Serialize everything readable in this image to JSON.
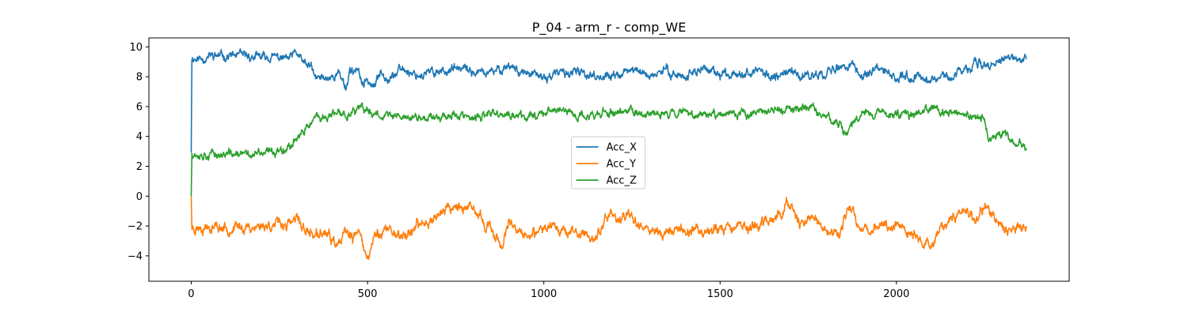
{
  "chart_data": {
    "type": "line",
    "title": "P_04 - arm_r - comp_WE",
    "xlabel": "",
    "ylabel": "",
    "xlim": [
      -120,
      2490
    ],
    "ylim": [
      -5.7,
      10.6
    ],
    "xticks": [
      0,
      500,
      1000,
      1500,
      2000
    ],
    "xtick_labels": [
      "0",
      "500",
      "1000",
      "1500",
      "2000"
    ],
    "yticks": [
      -4,
      -2,
      0,
      2,
      4,
      6,
      8,
      10
    ],
    "ytick_labels": [
      "−4",
      "−2",
      "0",
      "2",
      "4",
      "6",
      "8",
      "10"
    ],
    "grid": false,
    "legend_position": "center",
    "n_points": 2370,
    "series": [
      {
        "name": "Acc_X",
        "color": "#1f77b4",
        "keypoints": [
          [
            0,
            2.9
          ],
          [
            2,
            9.3
          ],
          [
            20,
            9.2
          ],
          [
            60,
            9.4
          ],
          [
            120,
            9.4
          ],
          [
            180,
            9.3
          ],
          [
            240,
            9.3
          ],
          [
            280,
            9.2
          ],
          [
            300,
            9.6
          ],
          [
            320,
            8.8
          ],
          [
            340,
            8.7
          ],
          [
            350,
            7.9
          ],
          [
            380,
            7.9
          ],
          [
            420,
            8.2
          ],
          [
            440,
            7.3
          ],
          [
            450,
            8.5
          ],
          [
            470,
            8.4
          ],
          [
            490,
            7.4
          ],
          [
            500,
            7.8
          ],
          [
            520,
            7.3
          ],
          [
            540,
            8.5
          ],
          [
            560,
            7.9
          ],
          [
            600,
            8.5
          ],
          [
            650,
            8.1
          ],
          [
            700,
            8.4
          ],
          [
            760,
            8.5
          ],
          [
            800,
            8.3
          ],
          [
            850,
            8.2
          ],
          [
            900,
            8.8
          ],
          [
            950,
            8.2
          ],
          [
            1000,
            7.9
          ],
          [
            1050,
            8.3
          ],
          [
            1100,
            8.2
          ],
          [
            1150,
            8.1
          ],
          [
            1200,
            8.0
          ],
          [
            1250,
            8.5
          ],
          [
            1300,
            8.1
          ],
          [
            1350,
            8.4
          ],
          [
            1400,
            8.0
          ],
          [
            1450,
            8.6
          ],
          [
            1500,
            8.0
          ],
          [
            1550,
            8.4
          ],
          [
            1600,
            8.3
          ],
          [
            1650,
            8.1
          ],
          [
            1700,
            8.3
          ],
          [
            1750,
            8.0
          ],
          [
            1800,
            8.4
          ],
          [
            1850,
            8.6
          ],
          [
            1880,
            8.8
          ],
          [
            1900,
            8.0
          ],
          [
            1950,
            8.4
          ],
          [
            2000,
            8.0
          ],
          [
            2050,
            8.0
          ],
          [
            2100,
            7.9
          ],
          [
            2150,
            8.1
          ],
          [
            2180,
            8.3
          ],
          [
            2210,
            8.3
          ],
          [
            2220,
            9.2
          ],
          [
            2250,
            8.8
          ],
          [
            2280,
            8.9
          ],
          [
            2320,
            9.2
          ],
          [
            2360,
            9.1
          ],
          [
            2368,
            9.2
          ]
        ],
        "noise": 0.26,
        "seed": 11
      },
      {
        "name": "Acc_Y",
        "color": "#ff7f0e",
        "keypoints": [
          [
            0,
            0.0
          ],
          [
            2,
            -2.1
          ],
          [
            40,
            -2.0
          ],
          [
            100,
            -2.1
          ],
          [
            160,
            -2.1
          ],
          [
            220,
            -1.9
          ],
          [
            280,
            -1.9
          ],
          [
            300,
            -1.6
          ],
          [
            330,
            -2.4
          ],
          [
            360,
            -2.7
          ],
          [
            380,
            -2.4
          ],
          [
            400,
            -3.0
          ],
          [
            420,
            -3.4
          ],
          [
            440,
            -2.4
          ],
          [
            460,
            -3.0
          ],
          [
            480,
            -2.2
          ],
          [
            500,
            -4.5
          ],
          [
            520,
            -2.6
          ],
          [
            560,
            -2.2
          ],
          [
            600,
            -2.7
          ],
          [
            640,
            -2.1
          ],
          [
            680,
            -1.5
          ],
          [
            720,
            -0.9
          ],
          [
            740,
            -0.7
          ],
          [
            760,
            -0.6
          ],
          [
            800,
            -1.1
          ],
          [
            820,
            -1.4
          ],
          [
            840,
            -2.1
          ],
          [
            860,
            -2.5
          ],
          [
            880,
            -3.3
          ],
          [
            900,
            -2.0
          ],
          [
            940,
            -2.6
          ],
          [
            980,
            -2.7
          ],
          [
            1020,
            -1.7
          ],
          [
            1060,
            -2.3
          ],
          [
            1100,
            -2.6
          ],
          [
            1150,
            -2.7
          ],
          [
            1190,
            -1.0
          ],
          [
            1220,
            -1.8
          ],
          [
            1240,
            -1.1
          ],
          [
            1260,
            -1.5
          ],
          [
            1300,
            -2.3
          ],
          [
            1340,
            -2.4
          ],
          [
            1400,
            -2.2
          ],
          [
            1450,
            -2.3
          ],
          [
            1500,
            -2.1
          ],
          [
            1550,
            -2.0
          ],
          [
            1600,
            -2.0
          ],
          [
            1650,
            -1.5
          ],
          [
            1680,
            -1.2
          ],
          [
            1690,
            -0.4
          ],
          [
            1700,
            -0.8
          ],
          [
            1720,
            -2.0
          ],
          [
            1760,
            -1.4
          ],
          [
            1800,
            -2.3
          ],
          [
            1840,
            -2.4
          ],
          [
            1870,
            -0.6
          ],
          [
            1900,
            -2.3
          ],
          [
            1950,
            -2.0
          ],
          [
            2000,
            -1.9
          ],
          [
            2040,
            -2.5
          ],
          [
            2080,
            -3.1
          ],
          [
            2100,
            -3.3
          ],
          [
            2120,
            -2.4
          ],
          [
            2160,
            -1.5
          ],
          [
            2200,
            -0.8
          ],
          [
            2220,
            -1.8
          ],
          [
            2240,
            -1.1
          ],
          [
            2260,
            -0.5
          ],
          [
            2280,
            -1.9
          ],
          [
            2320,
            -2.2
          ],
          [
            2368,
            -1.9
          ]
        ],
        "noise": 0.32,
        "seed": 23
      },
      {
        "name": "Acc_Z",
        "color": "#2ca02c",
        "keypoints": [
          [
            0,
            0.0
          ],
          [
            2,
            2.9
          ],
          [
            60,
            2.8
          ],
          [
            120,
            2.8
          ],
          [
            180,
            2.8
          ],
          [
            220,
            2.9
          ],
          [
            250,
            3.1
          ],
          [
            280,
            3.4
          ],
          [
            300,
            4.0
          ],
          [
            320,
            4.2
          ],
          [
            340,
            5.0
          ],
          [
            360,
            5.2
          ],
          [
            400,
            5.4
          ],
          [
            440,
            5.5
          ],
          [
            480,
            5.8
          ],
          [
            520,
            5.6
          ],
          [
            560,
            5.4
          ],
          [
            600,
            5.3
          ],
          [
            650,
            5.2
          ],
          [
            700,
            5.4
          ],
          [
            750,
            5.5
          ],
          [
            800,
            5.1
          ],
          [
            850,
            5.5
          ],
          [
            900,
            5.4
          ],
          [
            950,
            5.3
          ],
          [
            1000,
            5.7
          ],
          [
            1050,
            5.8
          ],
          [
            1100,
            5.3
          ],
          [
            1150,
            5.5
          ],
          [
            1200,
            5.6
          ],
          [
            1250,
            5.7
          ],
          [
            1300,
            5.4
          ],
          [
            1350,
            5.6
          ],
          [
            1400,
            5.7
          ],
          [
            1450,
            5.5
          ],
          [
            1500,
            5.6
          ],
          [
            1550,
            5.4
          ],
          [
            1600,
            5.7
          ],
          [
            1650,
            5.7
          ],
          [
            1700,
            5.8
          ],
          [
            1750,
            6.0
          ],
          [
            1800,
            5.3
          ],
          [
            1840,
            5.0
          ],
          [
            1850,
            4.1
          ],
          [
            1870,
            4.6
          ],
          [
            1900,
            5.6
          ],
          [
            1950,
            5.6
          ],
          [
            2000,
            5.5
          ],
          [
            2050,
            5.6
          ],
          [
            2100,
            5.8
          ],
          [
            2150,
            5.6
          ],
          [
            2200,
            5.2
          ],
          [
            2250,
            5.3
          ],
          [
            2260,
            3.9
          ],
          [
            2300,
            4.1
          ],
          [
            2330,
            3.7
          ],
          [
            2368,
            3.3
          ]
        ],
        "noise": 0.25,
        "seed": 37
      }
    ]
  }
}
